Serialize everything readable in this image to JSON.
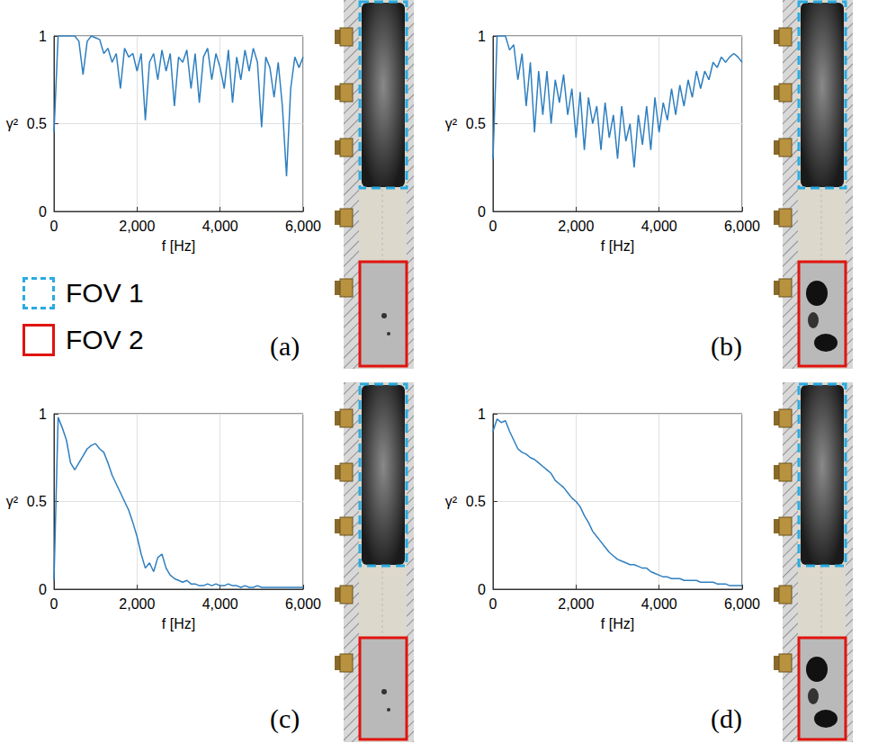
{
  "chart_data": [
    {
      "type": "line",
      "panel": "(a)",
      "x_label": "f [Hz]",
      "y_label": "γ²",
      "color": "#2e7fc0",
      "grid": true,
      "xlim": [
        0,
        6000
      ],
      "xticks": [
        0,
        2000,
        4000,
        6000
      ],
      "ylim": [
        0,
        1
      ],
      "yticks": [
        0,
        0.5,
        1
      ],
      "x": [
        0,
        100,
        200,
        300,
        400,
        500,
        600,
        700,
        800,
        900,
        1000,
        1100,
        1200,
        1300,
        1400,
        1500,
        1600,
        1700,
        1800,
        1900,
        2000,
        2100,
        2200,
        2300,
        2400,
        2500,
        2600,
        2700,
        2800,
        2900,
        3000,
        3100,
        3200,
        3300,
        3400,
        3500,
        3600,
        3700,
        3800,
        3900,
        4000,
        4100,
        4200,
        4300,
        4400,
        4500,
        4600,
        4700,
        4800,
        4900,
        5000,
        5100,
        5200,
        5300,
        5400,
        5500,
        5600,
        5700,
        5800,
        5900,
        6000
      ],
      "values": [
        0.45,
        1,
        1,
        1,
        1,
        1,
        0.97,
        0.78,
        0.97,
        1,
        0.99,
        0.98,
        0.9,
        0.93,
        0.85,
        0.9,
        0.7,
        0.93,
        0.88,
        0.9,
        0.8,
        0.9,
        0.52,
        0.85,
        0.9,
        0.75,
        0.92,
        0.8,
        0.9,
        0.6,
        0.88,
        0.85,
        0.92,
        0.7,
        0.9,
        0.62,
        0.88,
        0.93,
        0.75,
        0.9,
        0.82,
        0.7,
        0.92,
        0.62,
        0.88,
        0.75,
        0.92,
        0.8,
        0.93,
        0.85,
        0.48,
        0.88,
        0.82,
        0.65,
        0.85,
        0.6,
        0.2,
        0.7,
        0.88,
        0.82,
        0.88
      ]
    },
    {
      "type": "line",
      "panel": "(b)",
      "x_label": "f [Hz]",
      "y_label": "γ²",
      "color": "#2e7fc0",
      "grid": true,
      "xlim": [
        0,
        6000
      ],
      "xticks": [
        0,
        2000,
        4000,
        6000
      ],
      "ylim": [
        0,
        1
      ],
      "yticks": [
        0,
        0.5,
        1
      ],
      "x": [
        0,
        100,
        200,
        300,
        400,
        500,
        600,
        700,
        800,
        900,
        1000,
        1100,
        1200,
        1300,
        1400,
        1500,
        1600,
        1700,
        1800,
        1900,
        2000,
        2100,
        2200,
        2300,
        2400,
        2500,
        2600,
        2700,
        2800,
        2900,
        3000,
        3100,
        3200,
        3300,
        3400,
        3500,
        3600,
        3700,
        3800,
        3900,
        4000,
        4100,
        4200,
        4300,
        4400,
        4500,
        4600,
        4700,
        4800,
        4900,
        5000,
        5100,
        5200,
        5300,
        5400,
        5500,
        5600,
        5700,
        5800,
        5900,
        6000
      ],
      "values": [
        0.3,
        1,
        1,
        1,
        0.92,
        0.95,
        0.75,
        0.9,
        0.6,
        0.85,
        0.45,
        0.8,
        0.55,
        0.8,
        0.5,
        0.75,
        0.62,
        0.78,
        0.55,
        0.7,
        0.42,
        0.68,
        0.35,
        0.65,
        0.5,
        0.6,
        0.35,
        0.62,
        0.42,
        0.55,
        0.3,
        0.6,
        0.4,
        0.5,
        0.25,
        0.55,
        0.38,
        0.6,
        0.35,
        0.65,
        0.45,
        0.62,
        0.52,
        0.7,
        0.55,
        0.72,
        0.6,
        0.75,
        0.65,
        0.8,
        0.7,
        0.8,
        0.75,
        0.85,
        0.82,
        0.88,
        0.85,
        0.88,
        0.9,
        0.88,
        0.85
      ]
    },
    {
      "type": "line",
      "panel": "(c)",
      "x_label": "f [Hz]",
      "y_label": "γ²",
      "color": "#2e7fc0",
      "grid": true,
      "xlim": [
        0,
        6000
      ],
      "xticks": [
        0,
        2000,
        4000,
        6000
      ],
      "ylim": [
        0,
        1
      ],
      "yticks": [
        0,
        0.5,
        1
      ],
      "x": [
        0,
        100,
        200,
        300,
        400,
        500,
        600,
        700,
        800,
        900,
        1000,
        1100,
        1200,
        1300,
        1400,
        1500,
        1600,
        1700,
        1800,
        1900,
        2000,
        2100,
        2200,
        2300,
        2400,
        2500,
        2600,
        2700,
        2800,
        2900,
        3000,
        3100,
        3200,
        3300,
        3400,
        3500,
        3600,
        3700,
        3800,
        3900,
        4000,
        4100,
        4200,
        4300,
        4400,
        4500,
        4600,
        4700,
        4800,
        4900,
        5000,
        5100,
        5200,
        5300,
        5400,
        5500,
        5600,
        5700,
        5800,
        5900,
        6000
      ],
      "values": [
        0.05,
        0.98,
        0.92,
        0.85,
        0.72,
        0.68,
        0.72,
        0.76,
        0.8,
        0.82,
        0.83,
        0.8,
        0.78,
        0.72,
        0.65,
        0.6,
        0.55,
        0.5,
        0.45,
        0.38,
        0.3,
        0.2,
        0.12,
        0.15,
        0.1,
        0.18,
        0.2,
        0.12,
        0.08,
        0.06,
        0.05,
        0.04,
        0.05,
        0.03,
        0.03,
        0.02,
        0.02,
        0.03,
        0.02,
        0.03,
        0.02,
        0.02,
        0.03,
        0.02,
        0.02,
        0.01,
        0.02,
        0.01,
        0.01,
        0.02,
        0.01,
        0.01,
        0.01,
        0.01,
        0.01,
        0.01,
        0.01,
        0.01,
        0.01,
        0.01,
        0.01
      ]
    },
    {
      "type": "line",
      "panel": "(d)",
      "x_label": "f [Hz]",
      "y_label": "γ²",
      "color": "#2e7fc0",
      "grid": true,
      "xlim": [
        0,
        6000
      ],
      "xticks": [
        0,
        2000,
        4000,
        6000
      ],
      "ylim": [
        0,
        1
      ],
      "yticks": [
        0,
        0.5,
        1
      ],
      "x": [
        0,
        100,
        200,
        300,
        400,
        500,
        600,
        700,
        800,
        900,
        1000,
        1100,
        1200,
        1300,
        1400,
        1500,
        1600,
        1700,
        1800,
        1900,
        2000,
        2100,
        2200,
        2300,
        2400,
        2500,
        2600,
        2700,
        2800,
        2900,
        3000,
        3100,
        3200,
        3300,
        3400,
        3500,
        3600,
        3700,
        3800,
        3900,
        4000,
        4100,
        4200,
        4300,
        4400,
        4500,
        4600,
        4700,
        4800,
        4900,
        5000,
        5100,
        5200,
        5300,
        5400,
        5500,
        5600,
        5700,
        5800,
        5900,
        6000
      ],
      "values": [
        0.9,
        0.97,
        0.95,
        0.96,
        0.9,
        0.85,
        0.8,
        0.78,
        0.77,
        0.75,
        0.74,
        0.72,
        0.7,
        0.68,
        0.66,
        0.62,
        0.6,
        0.58,
        0.55,
        0.52,
        0.5,
        0.47,
        0.42,
        0.38,
        0.33,
        0.3,
        0.27,
        0.24,
        0.21,
        0.19,
        0.17,
        0.16,
        0.15,
        0.14,
        0.14,
        0.13,
        0.12,
        0.12,
        0.1,
        0.09,
        0.08,
        0.07,
        0.07,
        0.06,
        0.06,
        0.06,
        0.05,
        0.05,
        0.05,
        0.05,
        0.04,
        0.04,
        0.04,
        0.04,
        0.03,
        0.03,
        0.03,
        0.02,
        0.02,
        0.02,
        0.02
      ]
    }
  ],
  "fov_legend": [
    {
      "label": "FOV 1",
      "color": "#29abe2",
      "line_style": "dashed"
    },
    {
      "label": "FOV 2",
      "color": "#e0140f",
      "line_style": "solid"
    }
  ]
}
